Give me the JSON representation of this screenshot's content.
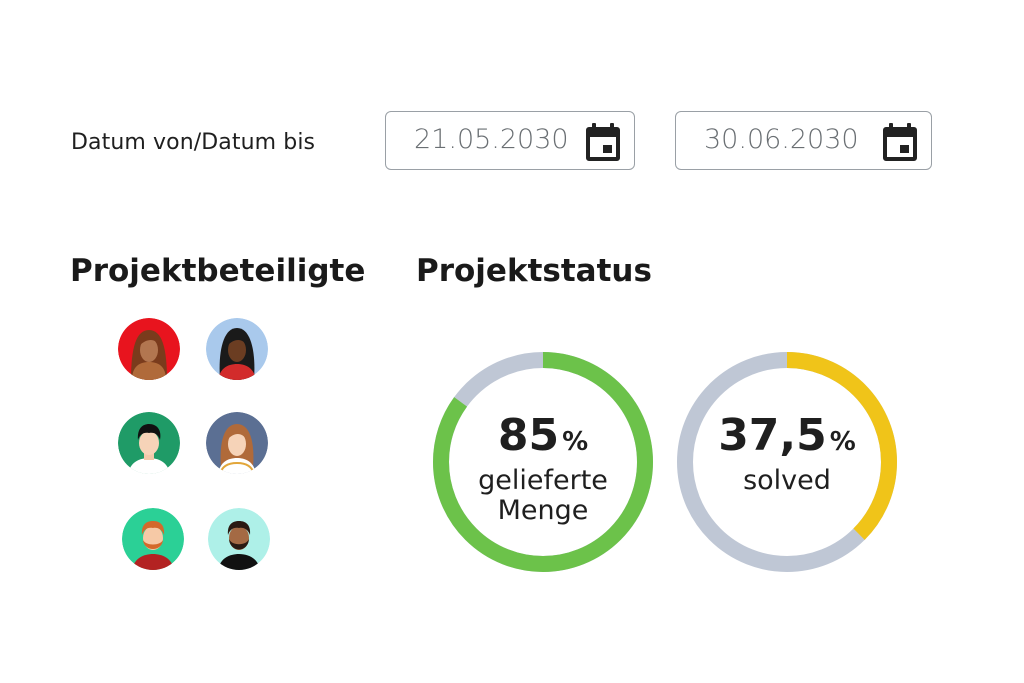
{
  "date_range": {
    "label": "Datum von/Datum bis",
    "from": "21.05.2030",
    "to": "30.06.2030"
  },
  "team": {
    "heading": "Projektbeteiligte",
    "avatars": [
      {
        "name": "avatar-woman-brown-hair",
        "bg": "#e8141e"
      },
      {
        "name": "avatar-woman-black-hair",
        "bg": "#a9c9ec"
      },
      {
        "name": "avatar-man-black-hair",
        "bg": "#1f9b67"
      },
      {
        "name": "avatar-woman-light-brown-hair",
        "bg": "#5b6f93"
      },
      {
        "name": "avatar-man-red-beard",
        "bg": "#2bd096"
      },
      {
        "name": "avatar-man-dark-beard",
        "bg": "#aef0e8"
      }
    ]
  },
  "status": {
    "heading": "Projektstatus",
    "items": [
      {
        "value": "85",
        "unit": "%",
        "caption_line1": "gelieferte",
        "caption_line2": "Menge",
        "percent": 85,
        "color": "#6cc24a",
        "track": "#bfc7d5"
      },
      {
        "value": "37,5",
        "unit": "%",
        "caption_line1": "solved",
        "caption_line2": "",
        "percent": 37.5,
        "color": "#f0c419",
        "track": "#bfc7d5"
      }
    ]
  }
}
